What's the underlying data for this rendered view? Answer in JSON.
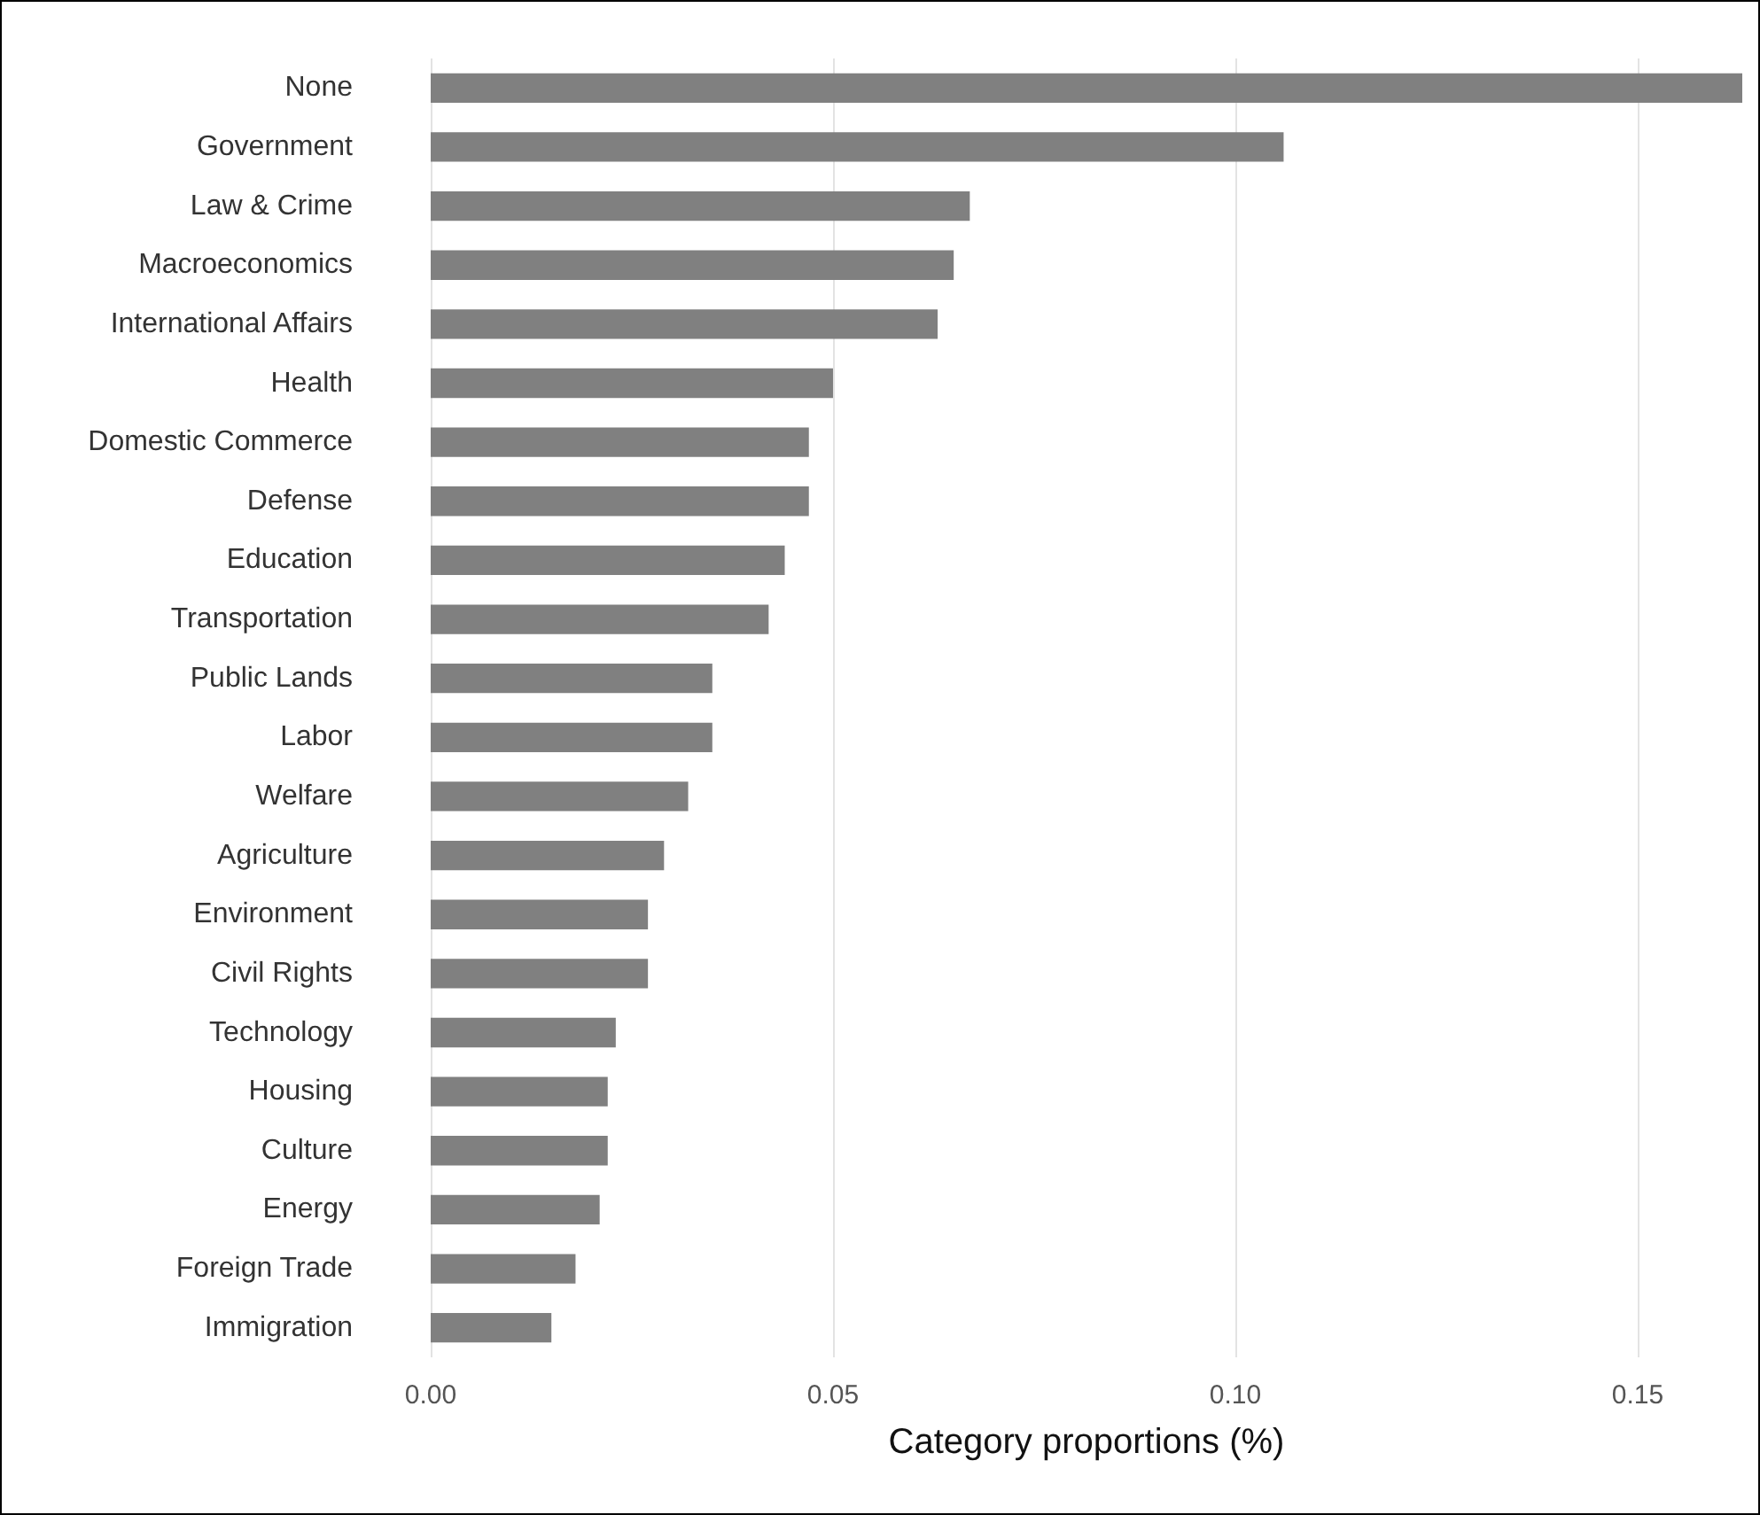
{
  "chart_data": {
    "type": "bar",
    "orientation": "horizontal",
    "xlabel": "Category proportions (%)",
    "categories": [
      "None",
      "Government",
      "Law & Crime",
      "Macroeconomics",
      "International Affairs",
      "Health",
      "Domestic Commerce",
      "Defense",
      "Education",
      "Transportation",
      "Public Lands",
      "Labor",
      "Welfare",
      "Agriculture",
      "Environment",
      "Civil Rights",
      "Technology",
      "Housing",
      "Culture",
      "Energy",
      "Foreign Trade",
      "Immigration"
    ],
    "values": [
      0.163,
      0.106,
      0.067,
      0.065,
      0.063,
      0.05,
      0.047,
      0.047,
      0.044,
      0.042,
      0.035,
      0.035,
      0.032,
      0.029,
      0.027,
      0.027,
      0.023,
      0.022,
      0.022,
      0.021,
      0.018,
      0.015
    ],
    "color": "#808080",
    "xlim": [
      0,
      0.163
    ],
    "xticks": [
      {
        "value": 0,
        "label": "0.00"
      },
      {
        "value": 0.05,
        "label": "0.05"
      },
      {
        "value": 0.1,
        "label": "0.10"
      },
      {
        "value": 0.15,
        "label": "0.15"
      }
    ],
    "grid": "x"
  }
}
